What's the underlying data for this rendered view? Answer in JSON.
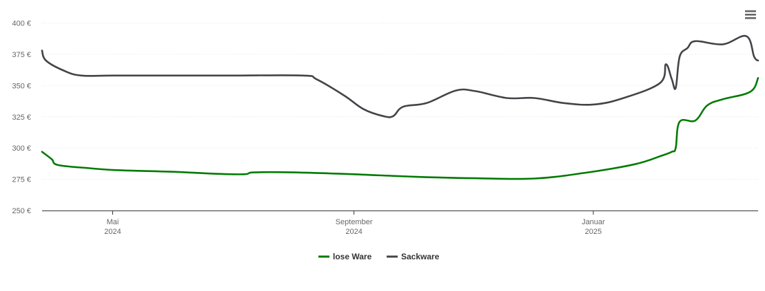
{
  "chart_data": {
    "type": "line",
    "ylim": [
      250,
      400
    ],
    "y_ticks": [
      {
        "value": 250,
        "label": "250 €"
      },
      {
        "value": 275,
        "label": "275 €"
      },
      {
        "value": 300,
        "label": "300 €"
      },
      {
        "value": 325,
        "label": "325 €"
      },
      {
        "value": 350,
        "label": "350 €"
      },
      {
        "value": 375,
        "label": "375 €"
      },
      {
        "value": 400,
        "label": "400 €"
      }
    ],
    "xlim": [
      "2024-03-26",
      "2025-03-26"
    ],
    "x_ticks": [
      {
        "date": "2024-05-01",
        "month": "Mai",
        "year": "2024"
      },
      {
        "date": "2024-09-01",
        "month": "September",
        "year": "2024"
      },
      {
        "date": "2025-01-01",
        "month": "Januar",
        "year": "2025"
      }
    ],
    "grid": true,
    "legend_position": "bottom-center",
    "series": [
      {
        "name": "lose Ware",
        "color": "#007a00",
        "points": [
          [
            "2024-03-26",
            297
          ],
          [
            "2024-03-31",
            291
          ],
          [
            "2024-04-03",
            286.5
          ],
          [
            "2024-04-18",
            284
          ],
          [
            "2024-05-03",
            282.3
          ],
          [
            "2024-06-01",
            281
          ],
          [
            "2024-06-21",
            279.5
          ],
          [
            "2024-07-07",
            279
          ],
          [
            "2024-07-12",
            280.5
          ],
          [
            "2024-08-01",
            280.5
          ],
          [
            "2024-09-01",
            279
          ],
          [
            "2024-10-02",
            277
          ],
          [
            "2024-11-02",
            275.8
          ],
          [
            "2024-12-02",
            275.6
          ],
          [
            "2024-12-27",
            280
          ],
          [
            "2025-01-22",
            287
          ],
          [
            "2025-02-05",
            294
          ],
          [
            "2025-02-10",
            297
          ],
          [
            "2025-02-12",
            300
          ],
          [
            "2025-02-14",
            321
          ],
          [
            "2025-02-22",
            322
          ],
          [
            "2025-02-28",
            334
          ],
          [
            "2025-03-08",
            339
          ],
          [
            "2025-03-22",
            345
          ],
          [
            "2025-03-26",
            356
          ]
        ]
      },
      {
        "name": "Sackware",
        "color": "#434348",
        "points": [
          [
            "2024-03-26",
            378
          ],
          [
            "2024-03-28",
            370
          ],
          [
            "2024-04-06",
            362
          ],
          [
            "2024-04-15",
            358
          ],
          [
            "2024-05-01",
            358
          ],
          [
            "2024-06-01",
            358
          ],
          [
            "2024-07-01",
            358
          ],
          [
            "2024-08-06",
            358
          ],
          [
            "2024-08-13",
            355
          ],
          [
            "2024-08-27",
            342
          ],
          [
            "2024-09-06",
            331
          ],
          [
            "2024-09-16",
            325.5
          ],
          [
            "2024-09-21",
            325.5
          ],
          [
            "2024-09-26",
            333
          ],
          [
            "2024-10-08",
            336
          ],
          [
            "2024-10-23",
            346
          ],
          [
            "2024-11-02",
            345.5
          ],
          [
            "2024-11-18",
            340
          ],
          [
            "2024-12-02",
            340
          ],
          [
            "2024-12-17",
            336
          ],
          [
            "2025-01-01",
            334.8
          ],
          [
            "2025-01-16",
            339.8
          ],
          [
            "2025-02-04",
            352
          ],
          [
            "2025-02-07",
            367
          ],
          [
            "2025-02-10",
            355
          ],
          [
            "2025-02-12",
            348
          ],
          [
            "2025-02-14",
            373
          ],
          [
            "2025-02-18",
            380
          ],
          [
            "2025-02-22",
            385.5
          ],
          [
            "2025-03-08",
            383
          ],
          [
            "2025-03-20",
            389.5
          ],
          [
            "2025-03-24",
            373
          ],
          [
            "2025-03-26",
            370
          ]
        ]
      }
    ]
  },
  "menu_icon": "hamburger-menu-icon"
}
